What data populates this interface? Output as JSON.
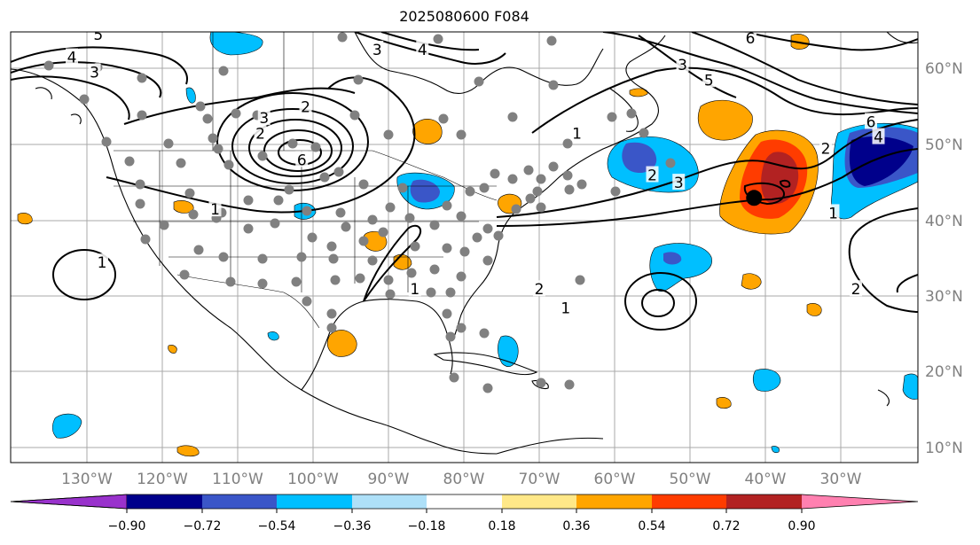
{
  "title": "2025080600 F084",
  "axes": {
    "lon_labels": [
      "130°W",
      "120°W",
      "110°W",
      "100°W",
      "90°W",
      "80°W",
      "70°W",
      "60°W",
      "50°W",
      "40°W",
      "30°W"
    ],
    "lat_labels": [
      "60°N",
      "50°N",
      "40°N",
      "30°N",
      "20°N",
      "10°N"
    ]
  },
  "colorbar": {
    "ticks": [
      "−0.90",
      "−0.72",
      "−0.54",
      "−0.36",
      "−0.18",
      "0.18",
      "0.36",
      "0.54",
      "0.72",
      "0.90"
    ],
    "colors": [
      "#9932cc",
      "#00008b",
      "#3a56c8",
      "#00bfff",
      "#aee0f8",
      "#ffffff",
      "#ffe888",
      "#ffa500",
      "#ff3c00",
      "#b22222",
      "#ff80b0"
    ]
  },
  "contour_labels": [
    {
      "text": "5",
      "lon": -128.5,
      "lat": 64.5
    },
    {
      "text": "4",
      "lon": -132.0,
      "lat": 61.5
    },
    {
      "text": "3",
      "lon": -129.0,
      "lat": 59.5
    },
    {
      "text": "3",
      "lon": -106.5,
      "lat": 53.5
    },
    {
      "text": "2",
      "lon": -101.0,
      "lat": 55.0
    },
    {
      "text": "2",
      "lon": -107.0,
      "lat": 51.5
    },
    {
      "text": "6",
      "lon": -101.5,
      "lat": 48.0
    },
    {
      "text": "1",
      "lon": -113.0,
      "lat": 41.5
    },
    {
      "text": "3",
      "lon": -91.5,
      "lat": 62.5
    },
    {
      "text": "4",
      "lon": -85.5,
      "lat": 62.5
    },
    {
      "text": "1",
      "lon": -65.0,
      "lat": 51.5
    },
    {
      "text": "2",
      "lon": -55.0,
      "lat": 46.0
    },
    {
      "text": "3",
      "lon": -51.5,
      "lat": 45.0
    },
    {
      "text": "3",
      "lon": -51.0,
      "lat": 60.5
    },
    {
      "text": "5",
      "lon": -47.5,
      "lat": 58.5
    },
    {
      "text": "6",
      "lon": -42.0,
      "lat": 64.0
    },
    {
      "text": "6",
      "lon": -26.0,
      "lat": 53.0
    },
    {
      "text": "4",
      "lon": -25.0,
      "lat": 51.0
    },
    {
      "text": "2",
      "lon": -32.0,
      "lat": 49.5
    },
    {
      "text": "1",
      "lon": -128.0,
      "lat": 34.5
    },
    {
      "text": "1",
      "lon": -86.5,
      "lat": 31.0
    },
    {
      "text": "2",
      "lon": -70.0,
      "lat": 31.0
    },
    {
      "text": "1",
      "lon": -66.5,
      "lat": 28.5
    },
    {
      "text": "1",
      "lon": -31.0,
      "lat": 41.0
    },
    {
      "text": "2",
      "lon": -28.0,
      "lat": 31.0
    }
  ],
  "center_marker": {
    "lon": -41.5,
    "lat": 43.0
  }
}
